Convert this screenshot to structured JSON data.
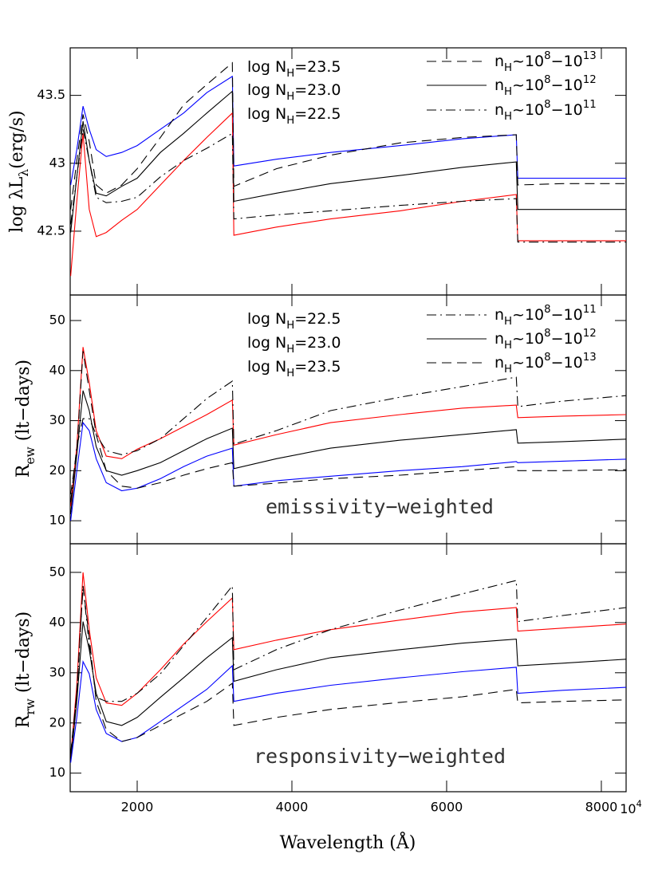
{
  "chart_data": [
    {
      "type": "line",
      "ylabel": [
        {
          "text": "log λL"
        },
        {
          "sub": "λ"
        },
        {
          "text": "(erg/s)"
        }
      ],
      "x": [
        1140,
        1220,
        1300,
        1380,
        1470,
        1600,
        1800,
        2000,
        2300,
        2600,
        2900,
        3230,
        3250,
        3800,
        4500,
        5400,
        6200,
        6900,
        6920,
        7500,
        8320
      ],
      "xlim": [
        1134,
        8320
      ],
      "ylim": [
        42.03,
        43.85
      ],
      "yticks": [
        {
          "value": 42.5,
          "label": "42.5"
        },
        {
          "value": 43,
          "label": "43"
        },
        {
          "value": 43.5,
          "label": "43.5"
        }
      ],
      "color_legend": [
        {
          "color": "#0000ff",
          "parts": [
            {
              "text": "log N"
            },
            {
              "sub": "H"
            },
            {
              "text": "=23.5"
            }
          ]
        },
        {
          "color": "#000000",
          "parts": [
            {
              "text": "log N"
            },
            {
              "sub": "H"
            },
            {
              "text": "=23.0"
            }
          ]
        },
        {
          "color": "#ff0000",
          "parts": [
            {
              "text": "log N"
            },
            {
              "sub": "H"
            },
            {
              "text": "=22.5"
            }
          ]
        }
      ],
      "style_legend": [
        {
          "dash": "dashed",
          "parts": [
            {
              "text": "n"
            },
            {
              "sub": "H"
            },
            {
              "text": "~10"
            },
            {
              "sup": "8"
            },
            {
              "text": "−10"
            },
            {
              "sup": "13"
            }
          ]
        },
        {
          "dash": "solid",
          "parts": [
            {
              "text": "n"
            },
            {
              "sub": "H"
            },
            {
              "text": "~10"
            },
            {
              "sup": "8"
            },
            {
              "text": "−10"
            },
            {
              "sup": "12"
            }
          ]
        },
        {
          "dash": "dashdot",
          "parts": [
            {
              "text": "n"
            },
            {
              "sub": "H"
            },
            {
              "text": "~10"
            },
            {
              "sup": "8"
            },
            {
              "text": "−10"
            },
            {
              "sup": "11"
            }
          ]
        }
      ],
      "series": [
        {
          "color": "#0000ff",
          "dash": "solid",
          "values": [
            42.84,
            43.1,
            43.42,
            43.25,
            43.1,
            43.05,
            43.08,
            43.13,
            43.25,
            43.37,
            43.52,
            43.64,
            42.98,
            43.03,
            43.08,
            43.13,
            43.18,
            43.21,
            42.89,
            42.89,
            42.89
          ]
        },
        {
          "color": "#000000",
          "dash": "solid",
          "values": [
            42.49,
            42.9,
            43.31,
            43.02,
            42.78,
            42.76,
            42.83,
            42.89,
            43.08,
            43.22,
            43.37,
            43.53,
            42.72,
            42.78,
            42.85,
            42.91,
            42.97,
            43.01,
            42.66,
            42.66,
            42.66
          ]
        },
        {
          "color": "#ff0000",
          "dash": "solid",
          "values": [
            42.17,
            42.72,
            43.22,
            42.66,
            42.46,
            42.49,
            42.58,
            42.66,
            42.84,
            43.02,
            43.19,
            43.37,
            42.47,
            42.53,
            42.59,
            42.65,
            42.72,
            42.77,
            42.43,
            42.43,
            42.43
          ]
        },
        {
          "color": "#000000",
          "dash": "dashed",
          "values": [
            42.66,
            43.02,
            43.36,
            43.16,
            42.84,
            42.78,
            42.84,
            42.96,
            43.19,
            43.43,
            43.58,
            43.74,
            42.83,
            42.96,
            43.06,
            43.15,
            43.19,
            43.21,
            42.84,
            42.85,
            42.85
          ]
        },
        {
          "color": "#000000",
          "dash": "dashdot",
          "values": [
            42.55,
            42.9,
            43.25,
            43.02,
            42.75,
            42.71,
            42.72,
            42.75,
            42.9,
            43.02,
            43.11,
            43.22,
            42.59,
            42.62,
            42.65,
            42.69,
            42.72,
            42.74,
            42.42,
            42.42,
            42.42
          ]
        }
      ]
    },
    {
      "type": "line",
      "ylabel": [
        {
          "text": "R"
        },
        {
          "sub": "ew"
        },
        {
          "text": "  (lt−days)"
        }
      ],
      "annotation": "emissivity−weighted",
      "x": [
        1140,
        1220,
        1300,
        1380,
        1470,
        1600,
        1800,
        2000,
        2300,
        2600,
        2900,
        3230,
        3250,
        3800,
        4500,
        5400,
        6200,
        6900,
        6920,
        7500,
        8320
      ],
      "xlim": [
        1134,
        8320
      ],
      "ylim": [
        5.4,
        55.1
      ],
      "yticks": [
        10,
        20,
        30,
        40,
        50
      ],
      "color_legend": [
        {
          "color": "#ff0000",
          "parts": [
            {
              "text": "log N"
            },
            {
              "sub": "H"
            },
            {
              "text": "=22.5"
            }
          ]
        },
        {
          "color": "#000000",
          "parts": [
            {
              "text": "log N"
            },
            {
              "sub": "H"
            },
            {
              "text": "=23.0"
            }
          ]
        },
        {
          "color": "#0000ff",
          "parts": [
            {
              "text": "log N"
            },
            {
              "sub": "H"
            },
            {
              "text": "=23.5"
            }
          ]
        }
      ],
      "style_legend": [
        {
          "dash": "dashdot",
          "parts": [
            {
              "text": "n"
            },
            {
              "sub": "H"
            },
            {
              "text": "~10"
            },
            {
              "sup": "8"
            },
            {
              "text": "−10"
            },
            {
              "sup": "11"
            }
          ]
        },
        {
          "dash": "solid",
          "parts": [
            {
              "text": "n"
            },
            {
              "sub": "H"
            },
            {
              "text": "~10"
            },
            {
              "sup": "8"
            },
            {
              "text": "−10"
            },
            {
              "sup": "12"
            }
          ]
        },
        {
          "dash": "dashed",
          "parts": [
            {
              "text": "n"
            },
            {
              "sub": "H"
            },
            {
              "text": "~10"
            },
            {
              "sup": "8"
            },
            {
              "text": "−10"
            },
            {
              "sup": "13"
            }
          ]
        }
      ],
      "series": [
        {
          "color": "#ff0000",
          "dash": "solid",
          "values": [
            12.9,
            24.8,
            44.7,
            37.6,
            28,
            22.9,
            22.4,
            24.3,
            26.4,
            28.8,
            31.2,
            34.1,
            25.1,
            27.2,
            29.6,
            31.2,
            32.5,
            33.1,
            30.6,
            30.9,
            31.2
          ]
        },
        {
          "color": "#000000",
          "dash": "solid",
          "values": [
            11.3,
            23.2,
            36,
            32,
            24.8,
            20,
            19.1,
            20,
            21.6,
            24,
            26.4,
            28.5,
            20.4,
            22.4,
            24.5,
            26.1,
            27.2,
            28.2,
            25.5,
            25.8,
            26.3
          ]
        },
        {
          "color": "#0000ff",
          "dash": "solid",
          "values": [
            10,
            20,
            29.6,
            28,
            22.4,
            17.6,
            16,
            16.5,
            18.4,
            20.8,
            22.9,
            24.5,
            16.9,
            18,
            18.9,
            20,
            20.8,
            21.8,
            21.6,
            21.9,
            22.3
          ]
        },
        {
          "color": "#000000",
          "dash": "dashed",
          "values": [
            15.3,
            24,
            43.9,
            36,
            27.2,
            20,
            16.9,
            16.5,
            17.6,
            19.1,
            20.4,
            21.6,
            16.9,
            17.5,
            18.4,
            19.1,
            20,
            20.8,
            20,
            20,
            20.2
          ]
        },
        {
          "color": "#000000",
          "dash": "dashdot",
          "values": [
            13.7,
            24.8,
            30.4,
            30.4,
            27.2,
            24,
            23.2,
            24,
            26.4,
            30.4,
            34.4,
            37.9,
            25.3,
            28,
            32,
            34.7,
            36.8,
            38.7,
            32.8,
            33.9,
            35
          ]
        }
      ]
    },
    {
      "type": "line",
      "ylabel": [
        {
          "text": "R"
        },
        {
          "sub": "rw"
        },
        {
          "text": "  (lt−days)"
        }
      ],
      "annotation": "responsivity−weighted",
      "xlabel": "Wavelength (Å)",
      "x_end_label": [
        {
          "text": "10"
        },
        {
          "sup": "4"
        }
      ],
      "x": [
        1140,
        1220,
        1300,
        1380,
        1470,
        1600,
        1800,
        2000,
        2300,
        2600,
        2900,
        3230,
        3250,
        3800,
        4500,
        5400,
        6200,
        6900,
        6920,
        7500,
        8320
      ],
      "xlim": [
        1134,
        8320
      ],
      "xticks": [
        2000,
        4000,
        6000,
        8000
      ],
      "ylim": [
        6.3,
        55.7
      ],
      "yticks": [
        10,
        20,
        30,
        40,
        50
      ],
      "series": [
        {
          "color": "#ff0000",
          "dash": "solid",
          "values": [
            13.2,
            27.5,
            50,
            38.6,
            29,
            24,
            23.5,
            25.9,
            30.6,
            35.7,
            40.2,
            44.9,
            34.6,
            36.5,
            38.6,
            40.5,
            42.1,
            43,
            38.3,
            38.9,
            39.7
          ]
        },
        {
          "color": "#000000",
          "dash": "solid",
          "values": [
            12.4,
            24.3,
            40.2,
            34.6,
            25.9,
            20.3,
            19.5,
            21.1,
            25.1,
            29,
            33,
            37,
            28.3,
            30.6,
            33,
            34.6,
            35.9,
            36.7,
            31.4,
            31.9,
            32.7
          ]
        },
        {
          "color": "#0000ff",
          "dash": "solid",
          "values": [
            12.1,
            21.1,
            32.2,
            29.8,
            22.7,
            17.9,
            16.3,
            17.1,
            20.3,
            23.5,
            26.7,
            31.4,
            24.3,
            25.9,
            27.5,
            29,
            30.2,
            31.1,
            25.9,
            26.5,
            27.1
          ]
        },
        {
          "color": "#000000",
          "dash": "dashed",
          "values": [
            14,
            25.9,
            47.3,
            37,
            24.3,
            18.7,
            16.3,
            17.1,
            19.5,
            21.9,
            24.3,
            27.9,
            19.5,
            21.1,
            22.7,
            24.1,
            25.2,
            26.7,
            24,
            24.3,
            24.6
          ]
        },
        {
          "color": "#000000",
          "dash": "dashdot",
          "values": [
            13.2,
            25.9,
            47.3,
            35.4,
            25.1,
            24.3,
            24.3,
            25.9,
            29.8,
            35.4,
            41,
            47.3,
            30.6,
            34.6,
            38.6,
            42.5,
            45.7,
            48.4,
            40.2,
            41.4,
            43
          ]
        }
      ]
    }
  ]
}
